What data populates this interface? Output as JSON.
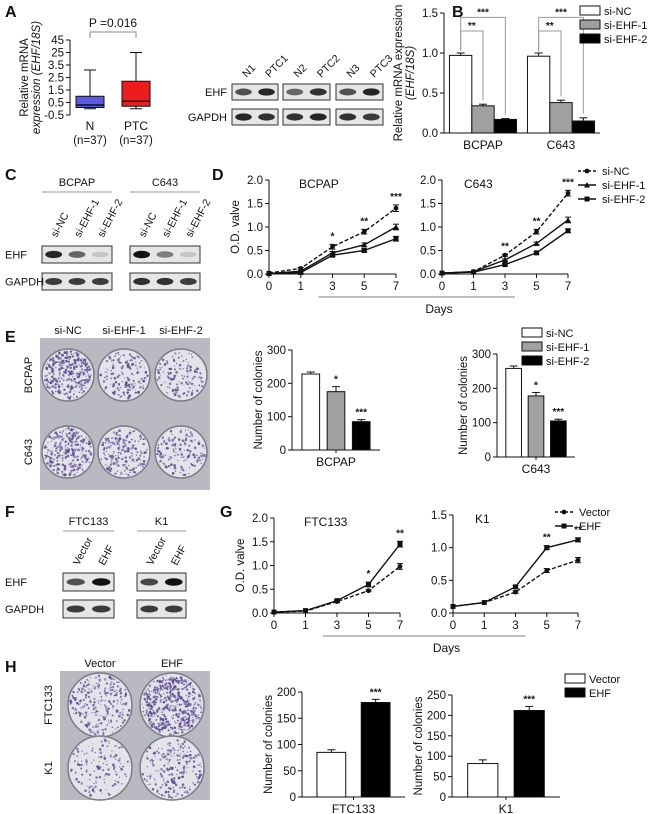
{
  "panel_labels": [
    "A",
    "B",
    "C",
    "D",
    "E",
    "F",
    "G",
    "H"
  ],
  "blots": {
    "A": {
      "lanes": [
        "N1",
        "PTC1",
        "N2",
        "PTC2",
        "N3",
        "PTC3"
      ],
      "rows": [
        "EHF",
        "GAPDH"
      ],
      "ehf_intensity": [
        0.7,
        0.9,
        0.6,
        0.85,
        0.7,
        0.9
      ],
      "gapdh_intensity": [
        0.9,
        0.85,
        0.85,
        0.9,
        0.85,
        0.8
      ]
    },
    "C": {
      "groups": [
        "BCPAP",
        "C643"
      ],
      "lanes": [
        "si-NC",
        "si-EHF-1",
        "si-EHF-2",
        "si-NC",
        "si-EHF-1",
        "si-EHF-2"
      ],
      "rows": [
        "EHF",
        "GAPDH"
      ],
      "ehf_intensity": [
        0.9,
        0.6,
        0.15,
        1.0,
        0.5,
        0.15
      ],
      "gapdh_intensity": [
        0.8,
        0.8,
        0.8,
        0.85,
        0.85,
        0.8
      ]
    },
    "F": {
      "groups": [
        "FTC133",
        "K1"
      ],
      "lanes": [
        "Vector",
        "EHF",
        "Vector",
        "EHF"
      ],
      "rows": [
        "EHF",
        "GAPDH"
      ],
      "ehf_intensity": [
        0.7,
        1.0,
        0.75,
        1.0
      ],
      "gapdh_intensity": [
        0.8,
        0.8,
        0.8,
        0.8
      ]
    }
  },
  "plates": {
    "E": {
      "columns": [
        "si-NC",
        "si-EHF-1",
        "si-EHF-2"
      ],
      "rows": [
        "BCPAP",
        "C643"
      ]
    },
    "H": {
      "columns": [
        "Vector",
        "EHF"
      ],
      "rows": [
        "FTC133",
        "K1"
      ]
    }
  },
  "chart_data": [
    {
      "type": "box",
      "panel": "A",
      "ylabel": [
        "Relative mRNA",
        "expression (EHF/18S)"
      ],
      "ytick_values": [
        -0.5,
        0.5,
        1.5,
        2.5,
        3.5,
        25,
        45
      ],
      "ytick_labels": [
        "-0.5",
        "0.5",
        "1.5",
        "2.5",
        "3.5",
        "25",
        "45"
      ],
      "categories": [
        "N",
        "PTC"
      ],
      "n_labels": [
        "(n=37)",
        "(n=37)"
      ],
      "boxes": [
        {
          "min": 0.0,
          "q1": 0.1,
          "median": 0.3,
          "q3": 1.0,
          "max": 3.1,
          "color": "#5a5ae6"
        },
        {
          "min": 0.0,
          "q1": 0.2,
          "median": 0.6,
          "q3": 2.2,
          "max": 25,
          "color": "#ee1c1c"
        }
      ],
      "annotation": "P =0.016"
    },
    {
      "type": "bar",
      "panel": "B",
      "ylabel": [
        "Relative mRNA expression",
        "(EHF/18S)"
      ],
      "categories": [
        "BCPAP",
        "C643"
      ],
      "ylim": [
        0,
        1.5
      ],
      "yticks": [
        0,
        0.5,
        1,
        1.5
      ],
      "ytick_labels": [
        "0.0",
        "0.5",
        "1.0",
        "1.5"
      ],
      "series": [
        {
          "name": "si-NC",
          "values": [
            0.97,
            0.96
          ],
          "errors": [
            0.03,
            0.04
          ],
          "color": "#ffffff",
          "significance": [
            "",
            ""
          ]
        },
        {
          "name": "si-EHF-1",
          "values": [
            0.34,
            0.38
          ],
          "errors": [
            0.02,
            0.03
          ],
          "color": "#a0a0a0",
          "significance": [
            "**",
            "**"
          ]
        },
        {
          "name": "si-EHF-2",
          "values": [
            0.17,
            0.15
          ],
          "errors": [
            0.01,
            0.04
          ],
          "color": "#000000",
          "significance": [
            "***",
            "***"
          ]
        }
      ],
      "legend": "top-right"
    },
    {
      "type": "line",
      "panel": "D",
      "title": "BCPAP",
      "xlabel": "Days",
      "ylabel": "O.D. valve",
      "x": [
        0,
        1,
        3,
        5,
        7
      ],
      "ylim": [
        0,
        2
      ],
      "yticks": [
        0,
        0.5,
        1,
        1.5,
        2
      ],
      "ytick_labels": [
        "0.0",
        "0.5",
        "1.0",
        "1.5",
        "2.0"
      ],
      "series": [
        {
          "name": "si-NC",
          "values": [
            0.02,
            0.12,
            0.58,
            0.9,
            1.4
          ],
          "errors": [
            0.01,
            0.02,
            0.05,
            0.05,
            0.07
          ],
          "style": "dashed",
          "marker": "circle"
        },
        {
          "name": "si-EHF-1",
          "values": [
            0.01,
            0.06,
            0.45,
            0.62,
            1.0
          ],
          "errors": [
            0.01,
            0.01,
            0.03,
            0.04,
            0.06
          ],
          "style": "solid",
          "marker": "triangle"
        },
        {
          "name": "si-EHF-2",
          "values": [
            0.01,
            0.03,
            0.4,
            0.5,
            0.75
          ],
          "errors": [
            0.01,
            0.01,
            0.03,
            0.03,
            0.05
          ],
          "style": "solid",
          "marker": "square"
        }
      ],
      "significance": [
        "",
        "",
        "*",
        "**",
        "***"
      ],
      "legend": "top-right"
    },
    {
      "type": "line",
      "panel": "D",
      "title": "C643",
      "xlabel": "Days",
      "ylabel": "",
      "x": [
        0,
        1,
        3,
        5,
        7
      ],
      "ylim": [
        0,
        2
      ],
      "yticks": [
        0,
        0.5,
        1,
        1.5,
        2
      ],
      "ytick_labels": [
        "0.0",
        "0.5",
        "1.0",
        "1.5",
        "2.0"
      ],
      "series": [
        {
          "name": "si-NC",
          "values": [
            0.02,
            0.05,
            0.4,
            0.9,
            1.72
          ],
          "errors": [
            0.01,
            0.01,
            0.02,
            0.05,
            0.06
          ],
          "style": "dashed",
          "marker": "circle"
        },
        {
          "name": "si-EHF-1",
          "values": [
            0.02,
            0.05,
            0.3,
            0.65,
            1.15
          ],
          "errors": [
            0.01,
            0.01,
            0.02,
            0.03,
            0.06
          ],
          "style": "solid",
          "marker": "triangle"
        },
        {
          "name": "si-EHF-2",
          "values": [
            0.02,
            0.04,
            0.2,
            0.45,
            0.92
          ],
          "errors": [
            0.01,
            0.01,
            0.02,
            0.03,
            0.04
          ],
          "style": "solid",
          "marker": "square"
        }
      ],
      "significance": [
        "",
        "",
        "**",
        "**",
        "***"
      ]
    },
    {
      "type": "bar",
      "panel": "E",
      "ylabel": [
        "Number of colonies"
      ],
      "categories": [
        "BCPAP"
      ],
      "ylim": [
        0,
        300
      ],
      "yticks": [
        0,
        100,
        200,
        300
      ],
      "ytick_labels": [
        "0",
        "100",
        "200",
        "300"
      ],
      "series": [
        {
          "name": "si-NC",
          "values": [
            228
          ],
          "errors": [
            6
          ],
          "color": "#ffffff",
          "significance": [
            ""
          ]
        },
        {
          "name": "si-EHF-1",
          "values": [
            175
          ],
          "errors": [
            15
          ],
          "color": "#a0a0a0",
          "significance": [
            "*"
          ]
        },
        {
          "name": "si-EHF-2",
          "values": [
            85
          ],
          "errors": [
            6
          ],
          "color": "#000000",
          "significance": [
            "***"
          ]
        }
      ]
    },
    {
      "type": "bar",
      "panel": "E",
      "ylabel": [
        "Number of colonies"
      ],
      "categories": [
        "C643"
      ],
      "ylim": [
        0,
        300
      ],
      "yticks": [
        0,
        100,
        200,
        300
      ],
      "ytick_labels": [
        "0",
        "100",
        "200",
        "300"
      ],
      "series": [
        {
          "name": "si-NC",
          "values": [
            258
          ],
          "errors": [
            7
          ],
          "color": "#ffffff",
          "significance": [
            ""
          ]
        },
        {
          "name": "si-EHF-1",
          "values": [
            178
          ],
          "errors": [
            10
          ],
          "color": "#a0a0a0",
          "significance": [
            "*"
          ]
        },
        {
          "name": "si-EHF-2",
          "values": [
            105
          ],
          "errors": [
            5
          ],
          "color": "#000000",
          "significance": [
            "***"
          ]
        }
      ],
      "legend": "top-right"
    },
    {
      "type": "line",
      "panel": "G",
      "title": "FTC133",
      "xlabel": "Days",
      "ylabel": "O.D. valve",
      "x": [
        0,
        1,
        3,
        5,
        7
      ],
      "ylim": [
        0,
        2
      ],
      "yticks": [
        0,
        0.5,
        1,
        1.5,
        2
      ],
      "ytick_labels": [
        "0.0",
        "0.5",
        "1.0",
        "1.5",
        "2.0"
      ],
      "series": [
        {
          "name": "Vector",
          "values": [
            0.02,
            0.04,
            0.24,
            0.47,
            0.98
          ],
          "errors": [
            0.01,
            0.01,
            0.02,
            0.02,
            0.06
          ],
          "style": "dashed",
          "marker": "circle"
        },
        {
          "name": "EHF",
          "values": [
            0.02,
            0.05,
            0.26,
            0.6,
            1.45
          ],
          "errors": [
            0.01,
            0.01,
            0.02,
            0.05,
            0.06
          ],
          "style": "solid",
          "marker": "square"
        }
      ],
      "significance": [
        "",
        "",
        "",
        "*",
        "**"
      ],
      "legend": "top-right"
    },
    {
      "type": "line",
      "panel": "G",
      "title": "K1",
      "xlabel": "Days",
      "ylabel": "",
      "x": [
        0,
        1,
        3,
        5,
        7
      ],
      "ylim": [
        0,
        1.5
      ],
      "yticks": [
        0,
        0.5,
        1,
        1.5
      ],
      "ytick_labels": [
        "0.0",
        "0.5",
        "1.0",
        "1.5"
      ],
      "series": [
        {
          "name": "Vector",
          "values": [
            0.1,
            0.16,
            0.32,
            0.65,
            0.81
          ],
          "errors": [
            0.01,
            0.01,
            0.02,
            0.03,
            0.04
          ],
          "style": "dashed",
          "marker": "circle"
        },
        {
          "name": "EHF",
          "values": [
            0.1,
            0.16,
            0.4,
            1.0,
            1.12
          ],
          "errors": [
            0.01,
            0.01,
            0.02,
            0.03,
            0.03
          ],
          "style": "solid",
          "marker": "square"
        }
      ],
      "significance": [
        "",
        "",
        "",
        "**",
        "**"
      ]
    },
    {
      "type": "bar",
      "panel": "H",
      "ylabel": [
        "Number of colonies"
      ],
      "categories": [
        "FTC133"
      ],
      "ylim": [
        0,
        200
      ],
      "yticks": [
        0,
        50,
        100,
        150,
        200
      ],
      "ytick_labels": [
        "0",
        "50",
        "100",
        "150",
        "200"
      ],
      "series": [
        {
          "name": "Vector",
          "values": [
            85
          ],
          "errors": [
            5
          ],
          "color": "#ffffff",
          "significance": [
            ""
          ]
        },
        {
          "name": "EHF",
          "values": [
            180
          ],
          "errors": [
            6
          ],
          "color": "#000000",
          "significance": [
            "***"
          ]
        }
      ],
      "legend": "top-right"
    },
    {
      "type": "bar",
      "panel": "H",
      "ylabel": [
        "Number of colonies"
      ],
      "categories": [
        "K1"
      ],
      "ylim": [
        0,
        250
      ],
      "yticks": [
        0,
        50,
        100,
        150,
        200,
        250
      ],
      "ytick_labels": [
        "0",
        "50",
        "100",
        "150",
        "200",
        "250"
      ],
      "series": [
        {
          "name": "Vector",
          "values": [
            82
          ],
          "errors": [
            9
          ],
          "color": "#ffffff",
          "significance": [
            ""
          ]
        },
        {
          "name": "EHF",
          "values": [
            212
          ],
          "errors": [
            10
          ],
          "color": "#000000",
          "significance": [
            "***"
          ]
        }
      ]
    }
  ]
}
